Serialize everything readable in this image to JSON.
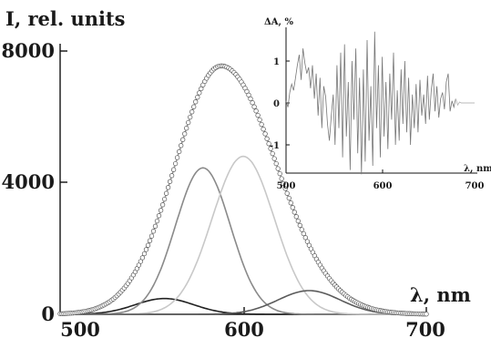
{
  "chart_data": [
    {
      "type": "line",
      "ylabel": "I, rel. units",
      "xlabel": "λ, nm",
      "xlim": [
        500,
        700
      ],
      "ylim": [
        0,
        8000
      ],
      "x_ticks": [
        "500",
        "600",
        "700"
      ],
      "y_ticks": [
        "0",
        "4000",
        "8000"
      ],
      "grid": false,
      "experimental_points": {
        "marker": "open-circle",
        "color": "#555555",
        "shape": "gaussian",
        "center": 588,
        "peak": 7550,
        "sigma_left": 25,
        "sigma_right": 30,
        "x_range": [
          500,
          700
        ],
        "step": 1
      },
      "series": [
        {
          "center": 557,
          "peak": 480,
          "sigma": 16,
          "color": "#222222"
        },
        {
          "center": 578,
          "peak": 4450,
          "sigma": 15,
          "color": "#8a8a8a"
        },
        {
          "center": 600,
          "peak": 4800,
          "sigma": 17,
          "color": "#c8c8c8"
        },
        {
          "center": 636,
          "peak": 720,
          "sigma": 17,
          "color": "#5a5a5a"
        },
        {
          "center": 588,
          "peak": 7550,
          "sigma_left": 25,
          "sigma_right": 30,
          "color": "#9a9a9a"
        }
      ]
    },
    {
      "type": "line",
      "ylabel": "ΔA, %",
      "xlabel": "λ, nm",
      "xlim": [
        500,
        700
      ],
      "ylim": [
        -1.7,
        1.7
      ],
      "x_ticks": [
        "500",
        "600",
        "700"
      ],
      "y_ticks": [
        "1",
        "0",
        "-1"
      ],
      "series": [
        {
          "color": "#777777",
          "x": [
            500,
            502,
            504,
            506,
            508,
            510,
            512,
            514,
            516,
            518,
            520,
            522,
            524,
            526,
            528,
            530,
            532,
            534,
            536,
            538,
            540,
            542,
            544,
            546,
            548,
            550,
            552,
            554,
            556,
            558,
            560,
            562,
            564,
            566,
            568,
            570,
            572,
            574,
            576,
            578,
            580,
            582,
            584,
            586,
            588,
            590,
            592,
            594,
            596,
            598,
            600,
            602,
            604,
            606,
            608,
            610,
            612,
            614,
            616,
            618,
            620,
            622,
            624,
            626,
            628,
            630,
            632,
            634,
            636,
            638,
            640,
            642,
            644,
            646,
            648,
            650,
            652,
            654,
            656,
            658,
            660,
            662,
            664,
            666,
            668,
            670,
            672,
            674,
            676,
            678,
            680,
            682,
            684,
            686,
            688,
            690,
            692,
            694,
            696,
            698,
            700
          ],
          "y": [
            0.05,
            -0.1,
            0.25,
            0.45,
            0.3,
            0.6,
            0.9,
            1.15,
            0.55,
            1.3,
            0.95,
            0.7,
            0.85,
            0.35,
            0.9,
            0.1,
            0.7,
            -0.3,
            0.6,
            -0.6,
            0.4,
            0.15,
            -0.5,
            -0.9,
            -0.3,
            0.2,
            -1.0,
            0.9,
            -0.6,
            1.2,
            -1.3,
            1.4,
            -0.8,
            0.5,
            -1.6,
            1.0,
            -0.4,
            1.3,
            -1.2,
            0.6,
            -1.7,
            0.8,
            -1.4,
            1.5,
            -0.9,
            0.4,
            -1.5,
            1.7,
            -0.6,
            0.9,
            -1.3,
            1.1,
            -0.8,
            0.5,
            -1.1,
            0.7,
            -0.4,
            1.2,
            -1.0,
            0.3,
            -0.9,
            0.8,
            -0.5,
            1.0,
            -0.7,
            0.6,
            -1.0,
            0.2,
            -0.6,
            0.45,
            -0.7,
            0.55,
            -0.3,
            0.2,
            -0.5,
            0.65,
            -0.4,
            0.3,
            0.7,
            -0.2,
            0.4,
            -0.35,
            0.1,
            0.25,
            -0.15,
            0.5,
            0.7,
            -0.2,
            0.05,
            -0.1,
            0.1,
            -0.05,
            0.02,
            0.0,
            0.0,
            0.0,
            0.0,
            0.0,
            0.0,
            0.0,
            0.0
          ],
          "noisy_until": 680,
          "tail_color": "#b8b8b8"
        }
      ]
    }
  ]
}
